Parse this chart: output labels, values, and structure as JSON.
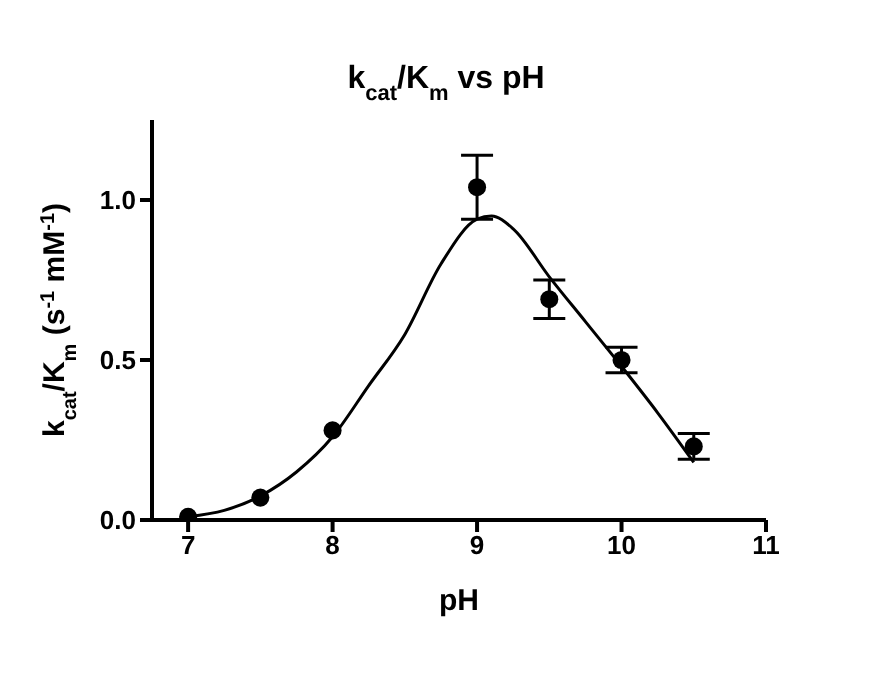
{
  "chart_data": {
    "type": "scatter",
    "title": "k$_{cat}$/K$_{m}$ vs pH",
    "xlabel": "pH",
    "ylabel": "k$_{cat}$/K$_{m}$ (s$^{-1}$ mM$^{-1}$)",
    "xlim": [
      6.75,
      11
    ],
    "xticks": [
      7,
      8,
      9,
      10,
      11
    ],
    "ylim": [
      0,
      1.25
    ],
    "yticks": [
      {
        "value": 0,
        "label": "0.0"
      },
      {
        "value": 0.5,
        "label": "0.5"
      },
      {
        "value": 1,
        "label": "1.0"
      }
    ],
    "grid": false,
    "series": [
      {
        "color": "#000000",
        "marker": "circle",
        "x": [
          7,
          7.5,
          8,
          9,
          9.5,
          10,
          10.5
        ],
        "values": [
          0.01,
          0.07,
          0.28,
          1.04,
          0.69,
          0.5,
          0.23
        ],
        "errors": [
          null,
          null,
          null,
          0.1,
          0.06,
          0.04,
          0.04
        ]
      },
      {
        "type": "line",
        "color": "#000000",
        "marker": "none",
        "line_style": "solid",
        "x": [
          7,
          7.25,
          7.5,
          7.75,
          8,
          8.25,
          8.5,
          8.75,
          9,
          9.1,
          9.25,
          9.5,
          9.75,
          10,
          10.25,
          10.5
        ],
        "values": [
          0.01,
          0.03,
          0.075,
          0.15,
          0.26,
          0.42,
          0.58,
          0.8,
          0.94,
          0.95,
          0.91,
          0.76,
          0.62,
          0.48,
          0.335,
          0.18
        ]
      }
    ]
  }
}
